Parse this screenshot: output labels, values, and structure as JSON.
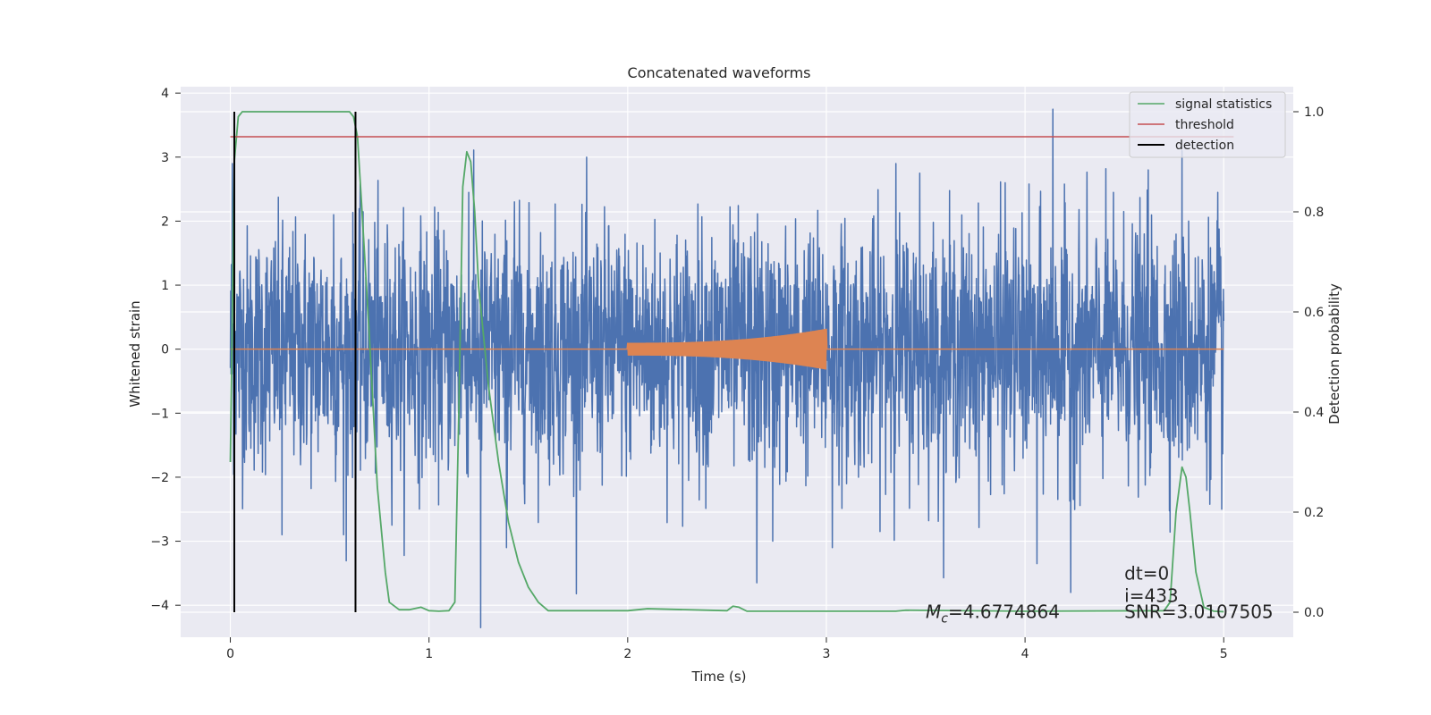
{
  "chart_data": {
    "type": "line",
    "title": "Concatenated waveforms",
    "xlabel": "Time (s)",
    "ylabel": "Whitened strain",
    "y2label": "Detection probability",
    "xlim": [
      -0.25,
      5.35
    ],
    "ylim": [
      -4.5,
      4.1
    ],
    "y2lim": [
      -0.05,
      1.05
    ],
    "x_ticks": [
      0,
      1,
      2,
      3,
      4,
      5
    ],
    "x_tick_labels": [
      "0",
      "1",
      "2",
      "3",
      "4",
      "5"
    ],
    "y_ticks": [
      -4,
      -3,
      -2,
      -1,
      0,
      1,
      2,
      3,
      4
    ],
    "y_tick_labels": [
      "−4",
      "−3",
      "−2",
      "−1",
      "0",
      "1",
      "2",
      "3",
      "4"
    ],
    "y2_ticks": [
      0.0,
      0.2,
      0.4,
      0.6,
      0.8,
      1.0
    ],
    "y2_tick_labels": [
      "0.0",
      "0.2",
      "0.4",
      "0.6",
      "0.8",
      "1.0"
    ],
    "grid": true,
    "legend_position": "top-right",
    "series": [
      {
        "kind": "noise",
        "axis": "left",
        "color": "#4c72b0",
        "x_range": [
          0,
          5
        ],
        "rms_amplitude": 0.95,
        "peaks": [
          {
            "x": 0.01,
            "y": 2.9
          },
          {
            "x": 0.02,
            "y": -1.5
          },
          {
            "x": 0.26,
            "y": -2.9
          },
          {
            "x": 0.52,
            "y": 2.1
          },
          {
            "x": 0.57,
            "y": -2.9
          },
          {
            "x": 1.26,
            "y": -4.35
          },
          {
            "x": 1.2,
            "y": 2.45
          },
          {
            "x": 1.39,
            "y": -3.1
          },
          {
            "x": 1.43,
            "y": 2.3
          },
          {
            "x": 2.65,
            "y": -3.65
          },
          {
            "x": 2.73,
            "y": -3.0
          },
          {
            "x": 3.03,
            "y": -3.1
          },
          {
            "x": 3.47,
            "y": 2.75
          },
          {
            "x": 3.35,
            "y": 2.9
          },
          {
            "x": 3.9,
            "y": 2.6
          },
          {
            "x": 4.06,
            "y": -3.35
          },
          {
            "x": 4.14,
            "y": 3.75
          },
          {
            "x": 4.23,
            "y": -3.8
          },
          {
            "x": 4.62,
            "y": 2.8
          },
          {
            "x": 4.79,
            "y": 3.1
          },
          {
            "x": 4.97,
            "y": 2.45
          },
          {
            "x": 4.99,
            "y": -2.5
          }
        ]
      },
      {
        "kind": "chirp",
        "axis": "left",
        "color": "#dd8452",
        "baseline_range": [
          0,
          5
        ],
        "chirp_range": [
          2.0,
          3.0
        ],
        "start_amplitude": 0.1,
        "end_amplitude": 0.32
      },
      {
        "name": "signal statistics",
        "axis": "right",
        "color": "#55a868",
        "x": [
          0,
          0.02,
          0.04,
          0.06,
          0.1,
          0.2,
          0.6,
          0.62,
          0.64,
          0.66,
          0.7,
          0.74,
          0.78,
          0.8,
          0.85,
          0.9,
          0.96,
          1.0,
          1.05,
          1.1,
          1.13,
          1.15,
          1.17,
          1.19,
          1.21,
          1.23,
          1.25,
          1.3,
          1.35,
          1.4,
          1.45,
          1.5,
          1.55,
          1.6,
          1.7,
          2.0,
          2.1,
          2.5,
          2.53,
          2.56,
          2.6,
          3.0,
          3.35,
          3.4,
          4.0,
          4.7,
          4.73,
          4.76,
          4.79,
          4.81,
          4.83,
          4.86,
          4.9,
          4.95,
          5.0
        ],
        "y": [
          0.3,
          0.9,
          0.99,
          1.0,
          1.0,
          1.0,
          1.0,
          0.99,
          0.95,
          0.82,
          0.55,
          0.25,
          0.08,
          0.02,
          0.005,
          0.005,
          0.01,
          0.003,
          0.002,
          0.003,
          0.02,
          0.4,
          0.85,
          0.92,
          0.9,
          0.8,
          0.65,
          0.45,
          0.3,
          0.18,
          0.1,
          0.05,
          0.02,
          0.003,
          0.003,
          0.003,
          0.007,
          0.003,
          0.012,
          0.01,
          0.002,
          0.002,
          0.002,
          0.004,
          0.002,
          0.003,
          0.02,
          0.2,
          0.29,
          0.27,
          0.2,
          0.08,
          0.01,
          0.002,
          0.001
        ]
      },
      {
        "name": "threshold",
        "axis": "right",
        "color": "#c44e52",
        "x": [
          0,
          5.05
        ],
        "y": [
          0.95,
          0.95
        ]
      },
      {
        "name": "detection",
        "axis": "right",
        "color": "#000000",
        "lines_x": [
          0.02,
          0.63
        ],
        "y_range": [
          0.0,
          1.0
        ]
      }
    ],
    "annotations": [
      {
        "text_italic": "M",
        "text_sub": "c",
        "text": "=4.6774864",
        "x": 3.5,
        "y": -4.2
      },
      {
        "text": "dt=0",
        "x": 4.5,
        "y": -3.6
      },
      {
        "text": "i=433",
        "x": 4.5,
        "y": -3.95
      },
      {
        "text": "SNR=3.0107505",
        "x": 4.5,
        "y": -4.2
      }
    ]
  },
  "colors": {
    "plot_background": "#eaeaf2",
    "grid": "#ffffff",
    "text": "#262626"
  }
}
